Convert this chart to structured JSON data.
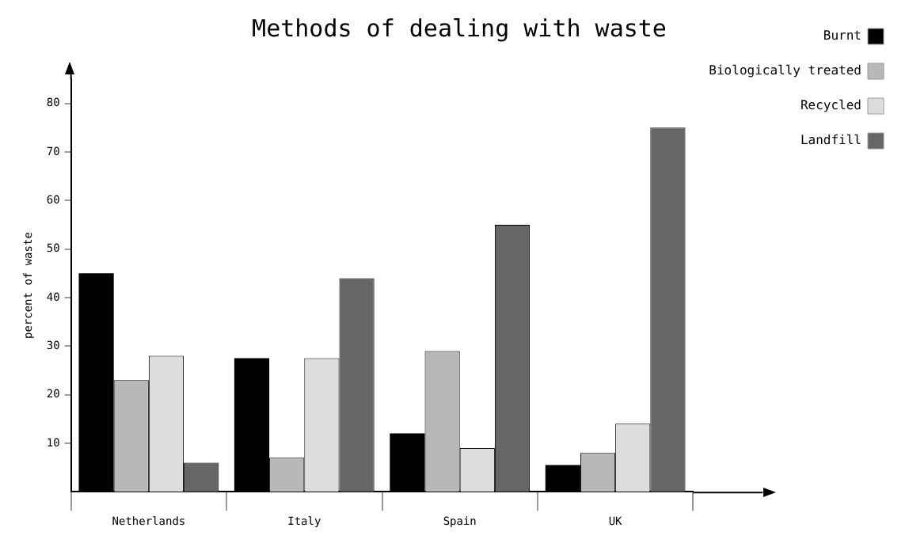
{
  "chart_data": {
    "type": "bar",
    "title": "Methods of dealing with waste",
    "ylabel": "percent of waste",
    "categories": [
      "Netherlands",
      "Italy",
      "Spain",
      "UK"
    ],
    "series": [
      {
        "name": "Burnt",
        "color": "#000000",
        "values": [
          45,
          27.5,
          12,
          5.5
        ]
      },
      {
        "name": "Biologically treated",
        "color": "#b8b8b8",
        "values": [
          23,
          7,
          29,
          8
        ]
      },
      {
        "name": "Recycled",
        "color": "#dddddd",
        "values": [
          28,
          27.5,
          9,
          14
        ]
      },
      {
        "name": "Landfill",
        "color": "#666666",
        "values": [
          6,
          44,
          55,
          75
        ]
      }
    ],
    "ylim": [
      0,
      85
    ],
    "yticks": [
      10,
      20,
      30,
      40,
      50,
      60,
      70,
      80
    ],
    "grid": false,
    "legend": "top right"
  }
}
